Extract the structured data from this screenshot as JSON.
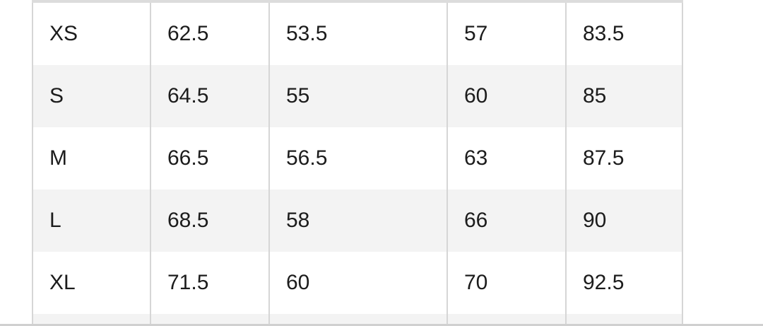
{
  "table": {
    "rows": [
      [
        "XS",
        "62.5",
        "53.5",
        "57",
        "83.5"
      ],
      [
        "S",
        "64.5",
        "55",
        "60",
        "85"
      ],
      [
        "M",
        "66.5",
        "56.5",
        "63",
        "87.5"
      ],
      [
        "L",
        "68.5",
        "58",
        "66",
        "90"
      ],
      [
        "XL",
        "71.5",
        "60",
        "70",
        "92.5"
      ]
    ]
  },
  "colors": {
    "stripe": "#f3f3f3",
    "border": "#d6d6d6",
    "text": "#1c1c1c"
  }
}
